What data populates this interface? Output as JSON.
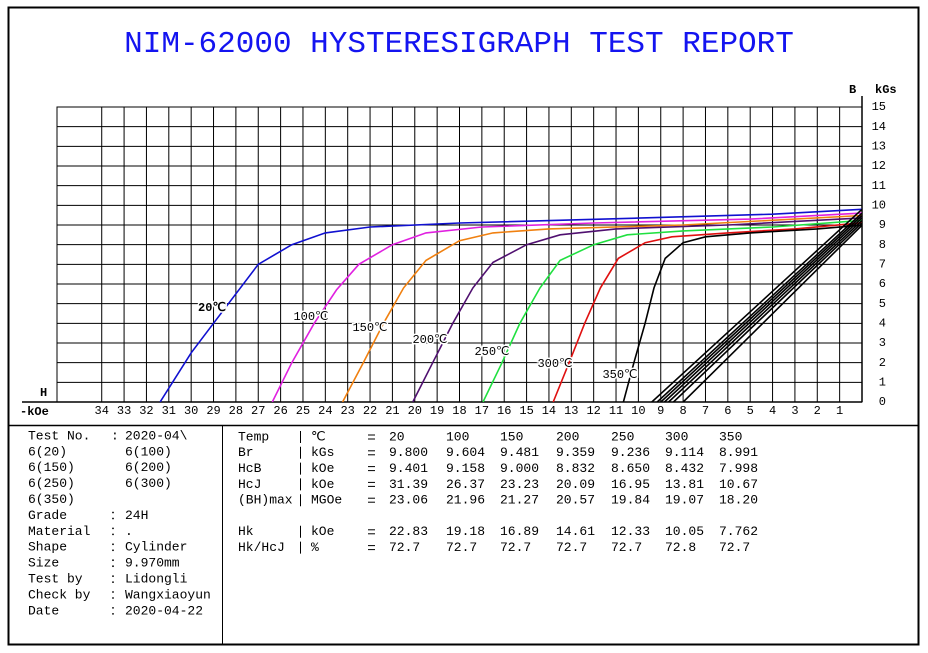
{
  "title": "NIM-62000 HYSTERESIGRAPH TEST REPORT",
  "chart_data": {
    "type": "line",
    "y_label": "B",
    "y_unit": "kGs",
    "x_label": "H",
    "x_unit": "-kOe",
    "xlim": [
      36,
      0
    ],
    "ylim": [
      0,
      15
    ],
    "xticks": [
      34,
      33,
      32,
      31,
      30,
      29,
      28,
      27,
      26,
      25,
      24,
      23,
      22,
      21,
      20,
      19,
      18,
      17,
      16,
      15,
      14,
      13,
      12,
      11,
      10,
      9,
      8,
      7,
      6,
      5,
      4,
      3,
      2,
      1
    ],
    "yticks": [
      0,
      1,
      2,
      3,
      4,
      5,
      6,
      7,
      8,
      9,
      10,
      11,
      12,
      13,
      14,
      15
    ],
    "grid": true,
    "series": [
      {
        "name": "20℃",
        "color": "#1010d0",
        "x": [
          31.39,
          30,
          29,
          28,
          27,
          25.5,
          24,
          22,
          18,
          10,
          4,
          0
        ],
        "values": [
          0,
          2.5,
          4,
          5.5,
          7,
          8,
          8.6,
          8.9,
          9.1,
          9.35,
          9.55,
          9.8
        ]
      },
      {
        "name": "100℃",
        "color": "#e020e0",
        "x": [
          26.37,
          25.5,
          24.5,
          23.5,
          22.5,
          21,
          19.5,
          17,
          12,
          5,
          0
        ],
        "values": [
          0,
          2,
          4,
          5.7,
          7,
          8,
          8.6,
          8.9,
          9.1,
          9.3,
          9.604
        ]
      },
      {
        "name": "150℃",
        "color": "#f08010",
        "x": [
          23.23,
          22.3,
          21.4,
          20.5,
          19.5,
          18,
          16.5,
          14,
          8,
          0
        ],
        "values": [
          0,
          2,
          4,
          5.8,
          7.2,
          8.2,
          8.6,
          8.8,
          9.0,
          9.481
        ]
      },
      {
        "name": "200℃",
        "color": "#501070",
        "x": [
          20.09,
          19.2,
          18.3,
          17.4,
          16.5,
          15,
          13.5,
          11,
          6,
          0
        ],
        "values": [
          0,
          2,
          4,
          5.8,
          7.1,
          8,
          8.5,
          8.8,
          9.0,
          9.359
        ]
      },
      {
        "name": "250℃",
        "color": "#20e040",
        "x": [
          16.95,
          16.1,
          15.3,
          14.4,
          13.5,
          12,
          10.5,
          8,
          4,
          0
        ],
        "values": [
          0,
          2,
          4,
          5.8,
          7.2,
          8,
          8.5,
          8.7,
          8.9,
          9.236
        ]
      },
      {
        "name": "300℃",
        "color": "#e01010",
        "x": [
          13.81,
          13.1,
          12.4,
          11.7,
          10.9,
          9.7,
          8.5,
          6,
          3,
          0
        ],
        "values": [
          0,
          2,
          4,
          5.8,
          7.3,
          8.1,
          8.4,
          8.6,
          8.8,
          9.114
        ]
      },
      {
        "name": "350℃",
        "color": "#000000",
        "x": [
          10.67,
          10.2,
          9.7,
          9.3,
          8.8,
          8,
          7,
          5,
          2,
          0
        ],
        "values": [
          0,
          2,
          4,
          5.8,
          7.3,
          8.1,
          8.4,
          8.6,
          8.8,
          8.991
        ]
      },
      {
        "color": "#000000",
        "x": [
          9.401,
          0
        ],
        "values": [
          0,
          9.8
        ]
      },
      {
        "color": "#000000",
        "x": [
          9.158,
          0
        ],
        "values": [
          0,
          9.604
        ]
      },
      {
        "color": "#000000",
        "x": [
          9.0,
          0
        ],
        "values": [
          0,
          9.481
        ]
      },
      {
        "color": "#000000",
        "x": [
          8.832,
          0
        ],
        "values": [
          0,
          9.359
        ]
      },
      {
        "color": "#000000",
        "x": [
          8.65,
          0
        ],
        "values": [
          0,
          9.236
        ]
      },
      {
        "color": "#000000",
        "x": [
          8.432,
          0
        ],
        "values": [
          0,
          9.114
        ]
      },
      {
        "color": "#000000",
        "x": [
          7.998,
          0
        ],
        "values": [
          0,
          8.991
        ]
      }
    ]
  },
  "info": {
    "test_no": {
      "label": "Test No.",
      "value": "2020-04\\"
    },
    "samples": [
      "6(20)",
      "6(100)",
      "6(150)",
      "6(200)",
      "6(250)",
      "6(300)",
      "6(350)"
    ],
    "fields": [
      {
        "label": "Grade",
        "value": "24H"
      },
      {
        "label": "Material",
        "value": "."
      },
      {
        "label": "Shape",
        "value": "Cylinder"
      },
      {
        "label": "Size",
        "value": "9.970mm"
      },
      {
        "label": "Test by",
        "value": "Lidongli"
      },
      {
        "label": "Check by",
        "value": "Wangxiaoyun"
      },
      {
        "label": "Date",
        "value": "2020-04-22"
      }
    ]
  },
  "results": {
    "rows": [
      {
        "param": "Temp",
        "unit": "℃",
        "values": [
          "20",
          "100",
          "150",
          "200",
          "250",
          "300",
          "350"
        ]
      },
      {
        "param": "Br",
        "unit": "kGs",
        "values": [
          "9.800",
          "9.604",
          "9.481",
          "9.359",
          "9.236",
          "9.114",
          "8.991"
        ]
      },
      {
        "param": "HcB",
        "unit": "kOe",
        "values": [
          "9.401",
          "9.158",
          "9.000",
          "8.832",
          "8.650",
          "8.432",
          "7.998"
        ]
      },
      {
        "param": "HcJ",
        "unit": "kOe",
        "values": [
          "31.39",
          "26.37",
          "23.23",
          "20.09",
          "16.95",
          "13.81",
          "10.67"
        ]
      },
      {
        "param": "(BH)max",
        "unit": "MGOe",
        "values": [
          "23.06",
          "21.96",
          "21.27",
          "20.57",
          "19.84",
          "19.07",
          "18.20"
        ]
      },
      {
        "param": "Hk",
        "unit": "kOe",
        "values": [
          "22.83",
          "19.18",
          "16.89",
          "14.61",
          "12.33",
          "10.05",
          "7.762"
        ]
      },
      {
        "param": "Hk/HcJ",
        "unit": "%",
        "values": [
          "72.7",
          "72.7",
          "72.7",
          "72.7",
          "72.7",
          "72.8",
          "72.7"
        ]
      }
    ]
  }
}
